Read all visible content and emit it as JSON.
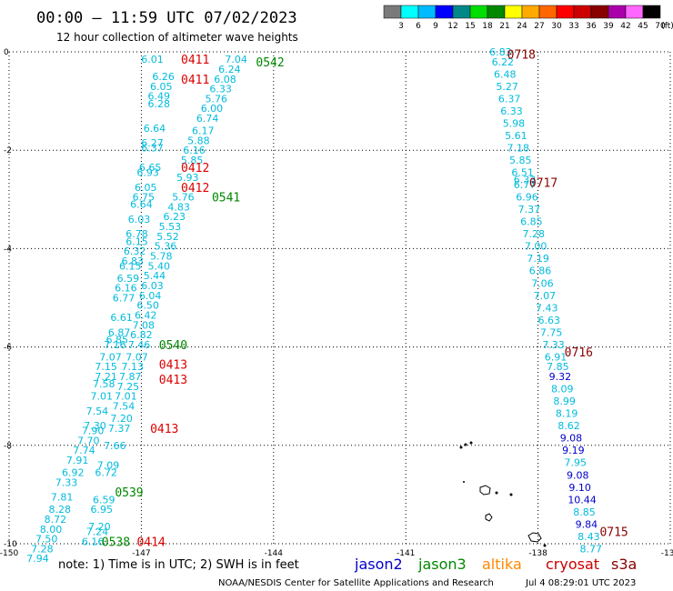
{
  "header": {
    "title": "00:00 – 11:59 UTC 07/02/2023",
    "subtitle": "12 hour collection of altimeter wave heights"
  },
  "colorbar": {
    "labels": [
      "3",
      "6",
      "9",
      "12",
      "15",
      "18",
      "21",
      "24",
      "27",
      "30",
      "33",
      "36",
      "39",
      "42",
      "45",
      "70"
    ],
    "unit": "(ft)",
    "colors": [
      "#7a7a7a",
      "#00ffff",
      "#00bbff",
      "#0000ff",
      "#008888",
      "#00dd00",
      "#008800",
      "#ffff00",
      "#ffaa00",
      "#ff6600",
      "#ff0000",
      "#cc0000",
      "#880000",
      "#aa00aa",
      "#ff66ff",
      "#000000"
    ]
  },
  "footer": {
    "note": "note: 1) Time is in UTC; 2) SWH is in feet",
    "satellites": [
      {
        "name": "jason2",
        "color": "#0000cc"
      },
      {
        "name": "jason3",
        "color": "#008800"
      },
      {
        "name": "altika",
        "color": "#ff8800"
      },
      {
        "name": "cryosat",
        "color": "#cc0000"
      },
      {
        "name": "s3a",
        "color": "#880000"
      }
    ],
    "credit": "NOAA/NESDIS Center for Satellite Applications and Research",
    "generated": "Jul  4 08:29:01 UTC 2023"
  },
  "chart_data": {
    "type": "scatter",
    "title": "00:00 – 11:59 UTC 07/02/2023",
    "subtitle": "12 hour collection of altimeter wave heights",
    "xlim": [
      -150,
      -135
    ],
    "ylim": [
      -10,
      0
    ],
    "xticks": [
      -150,
      -147,
      -144,
      -141,
      -138,
      -135
    ],
    "yticks": [
      0,
      -2,
      -4,
      -6,
      -8,
      -10
    ],
    "grid": true,
    "color_scale": "cyan below 9 ft, blue 9-12 ft",
    "time_labels": [
      {
        "text": "0411",
        "lon": -146.1,
        "lat": -0.15,
        "color": "#dd0000"
      },
      {
        "text": "0542",
        "lon": -144.4,
        "lat": -0.2,
        "color": "#008800"
      },
      {
        "text": "0411",
        "lon": -146.1,
        "lat": -0.55,
        "color": "#dd0000"
      },
      {
        "text": "0412",
        "lon": -146.1,
        "lat": -2.35,
        "color": "#dd0000"
      },
      {
        "text": "0412",
        "lon": -146.1,
        "lat": -2.75,
        "color": "#dd0000"
      },
      {
        "text": "0541",
        "lon": -145.4,
        "lat": -2.95,
        "color": "#008800"
      },
      {
        "text": "0540",
        "lon": -146.6,
        "lat": -5.95,
        "color": "#008800"
      },
      {
        "text": "0413",
        "lon": -146.6,
        "lat": -6.35,
        "color": "#dd0000"
      },
      {
        "text": "0413",
        "lon": -146.6,
        "lat": -6.65,
        "color": "#dd0000"
      },
      {
        "text": "0413",
        "lon": -146.8,
        "lat": -7.65,
        "color": "#dd0000"
      },
      {
        "text": "0539",
        "lon": -147.6,
        "lat": -8.95,
        "color": "#008800"
      },
      {
        "text": "0538",
        "lon": -147.9,
        "lat": -9.95,
        "color": "#008800"
      },
      {
        "text": "0414",
        "lon": -147.1,
        "lat": -9.95,
        "color": "#dd0000"
      },
      {
        "text": "0718",
        "lon": -138.7,
        "lat": -0.05,
        "color": "#880000"
      },
      {
        "text": "0717",
        "lon": -138.2,
        "lat": -2.65,
        "color": "#880000"
      },
      {
        "text": "0716",
        "lon": -137.4,
        "lat": -6.1,
        "color": "#880000"
      },
      {
        "text": "0715",
        "lon": -136.6,
        "lat": -9.75,
        "color": "#880000"
      }
    ],
    "series": [
      {
        "name": "jason3",
        "points": [
          {
            "lon": -144.85,
            "lat": -0.15,
            "v": "7.04"
          },
          {
            "lon": -145.0,
            "lat": -0.35,
            "v": "6.24"
          },
          {
            "lon": -145.1,
            "lat": -0.55,
            "v": "6.08"
          },
          {
            "lon": -145.2,
            "lat": -0.75,
            "v": "6.33"
          },
          {
            "lon": -145.3,
            "lat": -0.95,
            "v": "5.76"
          },
          {
            "lon": -145.4,
            "lat": -1.15,
            "v": "6.00"
          },
          {
            "lon": -145.5,
            "lat": -1.35,
            "v": "6.74"
          },
          {
            "lon": -145.6,
            "lat": -1.6,
            "v": "6.17"
          },
          {
            "lon": -145.7,
            "lat": -1.8,
            "v": "5.88"
          },
          {
            "lon": -145.8,
            "lat": -2.0,
            "v": "6.16"
          },
          {
            "lon": -145.85,
            "lat": -2.2,
            "v": "5.85"
          },
          {
            "lon": -145.95,
            "lat": -2.55,
            "v": "5.93"
          },
          {
            "lon": -146.05,
            "lat": -2.95,
            "v": "5.76"
          },
          {
            "lon": -146.15,
            "lat": -3.15,
            "v": "4.83"
          },
          {
            "lon": -146.25,
            "lat": -3.35,
            "v": "6.23"
          },
          {
            "lon": -146.35,
            "lat": -3.55,
            "v": "5.53"
          },
          {
            "lon": -146.4,
            "lat": -3.75,
            "v": "5.52"
          },
          {
            "lon": -146.45,
            "lat": -3.95,
            "v": "5.36"
          },
          {
            "lon": -146.55,
            "lat": -4.15,
            "v": "5.78"
          },
          {
            "lon": -146.6,
            "lat": -4.35,
            "v": "5.40"
          },
          {
            "lon": -146.7,
            "lat": -4.55,
            "v": "5.44"
          },
          {
            "lon": -146.75,
            "lat": -4.75,
            "v": "6.03"
          },
          {
            "lon": -146.8,
            "lat": -4.95,
            "v": "6.04"
          },
          {
            "lon": -146.85,
            "lat": -5.15,
            "v": "6.50"
          },
          {
            "lon": -146.9,
            "lat": -5.35,
            "v": "6.42"
          },
          {
            "lon": -146.95,
            "lat": -5.55,
            "v": "7.08"
          },
          {
            "lon": -147.0,
            "lat": -5.75,
            "v": "6.82"
          },
          {
            "lon": -147.05,
            "lat": -5.95,
            "v": "7.46"
          },
          {
            "lon": -147.1,
            "lat": -6.2,
            "v": "7.07"
          },
          {
            "lon": -147.2,
            "lat": -6.4,
            "v": "7.13"
          },
          {
            "lon": -147.25,
            "lat": -6.6,
            "v": "7.87"
          },
          {
            "lon": -147.3,
            "lat": -6.8,
            "v": "7.25"
          },
          {
            "lon": -147.35,
            "lat": -7.0,
            "v": "7.01"
          },
          {
            "lon": -147.4,
            "lat": -7.2,
            "v": "7.54"
          },
          {
            "lon": -147.45,
            "lat": -7.45,
            "v": "7.20"
          },
          {
            "lon": -147.5,
            "lat": -7.65,
            "v": "7.37"
          },
          {
            "lon": -147.6,
            "lat": -8.0,
            "v": "7.66"
          },
          {
            "lon": -147.75,
            "lat": -8.4,
            "v": "7.09"
          },
          {
            "lon": -147.8,
            "lat": -8.55,
            "v": "6.72"
          },
          {
            "lon": -147.85,
            "lat": -9.1,
            "v": "6.59"
          },
          {
            "lon": -147.9,
            "lat": -9.3,
            "v": "6.95"
          },
          {
            "lon": -147.95,
            "lat": -9.65,
            "v": "7.20"
          },
          {
            "lon": -148.0,
            "lat": -9.75,
            "v": "7.24"
          },
          {
            "lon": -148.1,
            "lat": -9.95,
            "v": "6.16"
          }
        ]
      },
      {
        "name": "cryosat",
        "points": [
          {
            "lon": -146.75,
            "lat": -0.15,
            "v": "6.01"
          },
          {
            "lon": -146.5,
            "lat": -0.5,
            "v": "6.26"
          },
          {
            "lon": -146.55,
            "lat": -0.7,
            "v": "6.05"
          },
          {
            "lon": -146.6,
            "lat": -0.9,
            "v": "6.49"
          },
          {
            "lon": -146.6,
            "lat": -1.05,
            "v": "6.28"
          },
          {
            "lon": -146.7,
            "lat": -1.55,
            "v": "6.64"
          },
          {
            "lon": -146.75,
            "lat": -1.85,
            "v": "6.27"
          },
          {
            "lon": -146.75,
            "lat": -1.95,
            "v": "6.37"
          },
          {
            "lon": -146.8,
            "lat": -2.35,
            "v": "6.65"
          },
          {
            "lon": -146.85,
            "lat": -2.45,
            "v": "6.93"
          },
          {
            "lon": -146.9,
            "lat": -2.75,
            "v": "6.05"
          },
          {
            "lon": -146.95,
            "lat": -2.95,
            "v": "6.75"
          },
          {
            "lon": -147.0,
            "lat": -3.1,
            "v": "6.64"
          },
          {
            "lon": -147.05,
            "lat": -3.4,
            "v": "6.03"
          },
          {
            "lon": -147.1,
            "lat": -3.7,
            "v": "6.78"
          },
          {
            "lon": -147.1,
            "lat": -3.85,
            "v": "6.15"
          },
          {
            "lon": -147.15,
            "lat": -4.05,
            "v": "6.32"
          },
          {
            "lon": -147.2,
            "lat": -4.25,
            "v": "6.83"
          },
          {
            "lon": -147.25,
            "lat": -4.35,
            "v": "6.15"
          },
          {
            "lon": -147.3,
            "lat": -4.6,
            "v": "6.59"
          },
          {
            "lon": -147.35,
            "lat": -4.8,
            "v": "6.16"
          },
          {
            "lon": -147.4,
            "lat": -5.0,
            "v": "6.77"
          },
          {
            "lon": -147.45,
            "lat": -5.4,
            "v": "6.61"
          },
          {
            "lon": -147.5,
            "lat": -5.7,
            "v": "6.87"
          },
          {
            "lon": -147.55,
            "lat": -5.85,
            "v": "6.85"
          },
          {
            "lon": -147.6,
            "lat": -5.95,
            "v": "7.16"
          },
          {
            "lon": -147.7,
            "lat": -6.2,
            "v": "7.07"
          },
          {
            "lon": -147.8,
            "lat": -6.4,
            "v": "7.15"
          },
          {
            "lon": -147.8,
            "lat": -6.6,
            "v": "7.21"
          },
          {
            "lon": -147.85,
            "lat": -6.75,
            "v": "7.58"
          },
          {
            "lon": -147.9,
            "lat": -7.0,
            "v": "7.01"
          },
          {
            "lon": -148.0,
            "lat": -7.3,
            "v": "7.54"
          },
          {
            "lon": -148.05,
            "lat": -7.6,
            "v": "7.30"
          },
          {
            "lon": -148.1,
            "lat": -7.7,
            "v": "7.90"
          },
          {
            "lon": -148.2,
            "lat": -7.9,
            "v": "7.70"
          },
          {
            "lon": -148.3,
            "lat": -8.1,
            "v": "7.74"
          },
          {
            "lon": -148.45,
            "lat": -8.3,
            "v": "7.91"
          },
          {
            "lon": -148.55,
            "lat": -8.55,
            "v": "6.92"
          },
          {
            "lon": -148.7,
            "lat": -8.75,
            "v": "7.33"
          },
          {
            "lon": -148.8,
            "lat": -9.05,
            "v": "7.81"
          },
          {
            "lon": -148.85,
            "lat": -9.3,
            "v": "8.28"
          },
          {
            "lon": -148.95,
            "lat": -9.5,
            "v": "8.72"
          },
          {
            "lon": -149.05,
            "lat": -9.7,
            "v": "8.00"
          },
          {
            "lon": -149.15,
            "lat": -9.9,
            "v": "7.50"
          },
          {
            "lon": -149.25,
            "lat": -10.1,
            "v": "7.28"
          },
          {
            "lon": -149.35,
            "lat": -10.3,
            "v": "7.94"
          }
        ]
      },
      {
        "name": "s3a",
        "points": [
          {
            "lon": -138.85,
            "lat": 0.0,
            "v": "6.83"
          },
          {
            "lon": -138.8,
            "lat": -0.2,
            "v": "6.22"
          },
          {
            "lon": -138.75,
            "lat": -0.45,
            "v": "6.48"
          },
          {
            "lon": -138.7,
            "lat": -0.7,
            "v": "5.27"
          },
          {
            "lon": -138.65,
            "lat": -0.95,
            "v": "6.37"
          },
          {
            "lon": -138.6,
            "lat": -1.2,
            "v": "6.33"
          },
          {
            "lon": -138.55,
            "lat": -1.45,
            "v": "5.98"
          },
          {
            "lon": -138.5,
            "lat": -1.7,
            "v": "5.61"
          },
          {
            "lon": -138.45,
            "lat": -1.95,
            "v": "7.18"
          },
          {
            "lon": -138.4,
            "lat": -2.2,
            "v": "5.85"
          },
          {
            "lon": -138.35,
            "lat": -2.45,
            "v": "6.51"
          },
          {
            "lon": -138.3,
            "lat": -2.6,
            "v": "6.33"
          },
          {
            "lon": -138.3,
            "lat": -2.7,
            "v": "6.77"
          },
          {
            "lon": -138.25,
            "lat": -2.95,
            "v": "6.96"
          },
          {
            "lon": -138.2,
            "lat": -3.2,
            "v": "7.37"
          },
          {
            "lon": -138.15,
            "lat": -3.45,
            "v": "6.85"
          },
          {
            "lon": -138.1,
            "lat": -3.7,
            "v": "7.28"
          },
          {
            "lon": -138.05,
            "lat": -3.95,
            "v": "7.00"
          },
          {
            "lon": -138.0,
            "lat": -4.2,
            "v": "7.19"
          },
          {
            "lon": -137.95,
            "lat": -4.45,
            "v": "6.86"
          },
          {
            "lon": -137.9,
            "lat": -4.7,
            "v": "7.06"
          },
          {
            "lon": -137.85,
            "lat": -4.95,
            "v": "7.07"
          },
          {
            "lon": -137.8,
            "lat": -5.2,
            "v": "7.43"
          },
          {
            "lon": -137.75,
            "lat": -5.45,
            "v": "6.63"
          },
          {
            "lon": -137.7,
            "lat": -5.7,
            "v": "7.75"
          },
          {
            "lon": -137.65,
            "lat": -5.95,
            "v": "7.33"
          },
          {
            "lon": -137.6,
            "lat": -6.2,
            "v": "6.91"
          },
          {
            "lon": -137.55,
            "lat": -6.4,
            "v": "7.85"
          },
          {
            "lon": -137.5,
            "lat": -6.6,
            "v": "9.32"
          },
          {
            "lon": -137.45,
            "lat": -6.85,
            "v": "8.09"
          },
          {
            "lon": -137.4,
            "lat": -7.1,
            "v": "8.99"
          },
          {
            "lon": -137.35,
            "lat": -7.35,
            "v": "8.19"
          },
          {
            "lon": -137.3,
            "lat": -7.6,
            "v": "8.62"
          },
          {
            "lon": -137.25,
            "lat": -7.85,
            "v": "9.08"
          },
          {
            "lon": -137.2,
            "lat": -8.1,
            "v": "9.19"
          },
          {
            "lon": -137.15,
            "lat": -8.35,
            "v": "7.95"
          },
          {
            "lon": -137.1,
            "lat": -8.6,
            "v": "9.08"
          },
          {
            "lon": -137.05,
            "lat": -8.85,
            "v": "9.10"
          },
          {
            "lon": -137.0,
            "lat": -9.1,
            "v": "10.44"
          },
          {
            "lon": -136.95,
            "lat": -9.35,
            "v": "8.85"
          },
          {
            "lon": -136.9,
            "lat": -9.6,
            "v": "9.84"
          },
          {
            "lon": -136.85,
            "lat": -9.85,
            "v": "8.43"
          },
          {
            "lon": -136.8,
            "lat": -10.1,
            "v": "8.77"
          }
        ]
      }
    ]
  }
}
